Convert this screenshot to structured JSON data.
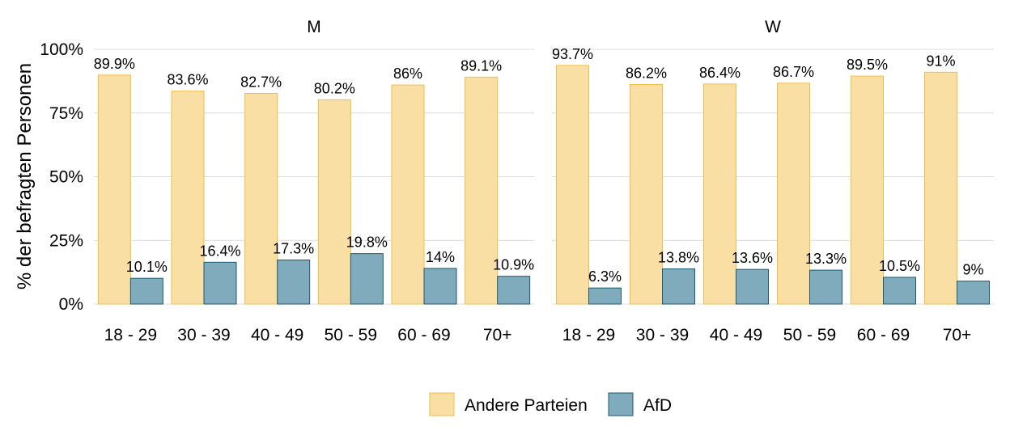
{
  "chart_data": {
    "type": "bar",
    "ylabel": "% der befragten Personen",
    "ylim": [
      0,
      100
    ],
    "yticks": [
      "0%",
      "25%",
      "50%",
      "75%",
      "100%"
    ],
    "categories": [
      "18 - 29",
      "30 - 39",
      "40 - 49",
      "50 - 59",
      "60 - 69",
      "70+"
    ],
    "grid": true,
    "legend_position": "bottom",
    "legend": [
      {
        "name": "Andere Parteien",
        "color": "#fadfa4",
        "stroke": "#f2be48"
      },
      {
        "name": "AfD",
        "color": "#80abbd",
        "stroke": "#1d5a72"
      }
    ],
    "panels": [
      {
        "title": "M",
        "series": [
          {
            "name": "Andere Parteien",
            "values": [
              89.9,
              83.6,
              82.7,
              80.2,
              86,
              89.1
            ],
            "labels": [
              "89.9%",
              "83.6%",
              "82.7%",
              "80.2%",
              "86%",
              "89.1%"
            ]
          },
          {
            "name": "AfD",
            "values": [
              10.1,
              16.4,
              17.3,
              19.8,
              14,
              10.9
            ],
            "labels": [
              "10.1%",
              "16.4%",
              "17.3%",
              "19.8%",
              "14%",
              "10.9%"
            ]
          }
        ]
      },
      {
        "title": "W",
        "series": [
          {
            "name": "Andere Parteien",
            "values": [
              93.7,
              86.2,
              86.4,
              86.7,
              89.5,
              91
            ],
            "labels": [
              "93.7%",
              "86.2%",
              "86.4%",
              "86.7%",
              "89.5%",
              "91%"
            ]
          },
          {
            "name": "AfD",
            "values": [
              6.3,
              13.8,
              13.6,
              13.3,
              10.5,
              9
            ],
            "labels": [
              "6.3%",
              "13.8%",
              "13.6%",
              "13.3%",
              "10.5%",
              "9%"
            ]
          }
        ]
      }
    ]
  }
}
